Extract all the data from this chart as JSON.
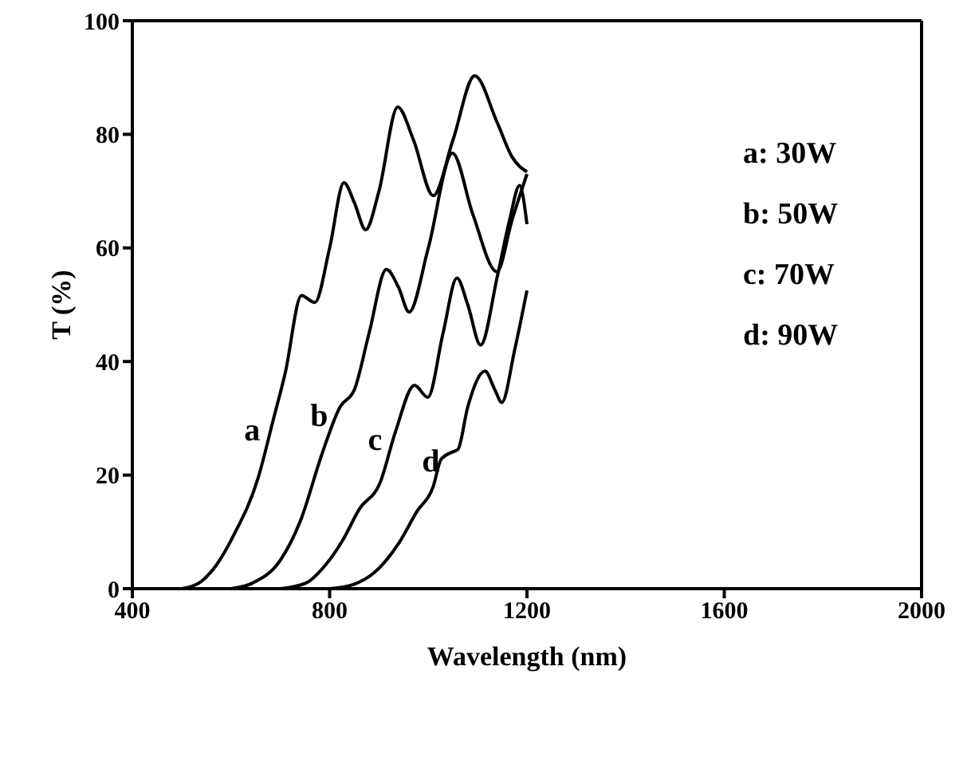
{
  "chart_data": {
    "type": "line",
    "xlabel": "Wavelength (nm)",
    "ylabel": "T (%)",
    "xlim": [
      400,
      2000
    ],
    "xticks": [
      400,
      800,
      1200,
      1600,
      2000
    ],
    "ylim": [
      0,
      100
    ],
    "yticks": [
      0,
      20,
      40,
      60,
      80,
      100
    ],
    "marker": "none",
    "line_style": "solid",
    "series": [
      {
        "name": "a",
        "color": "#000000",
        "x": [
          500,
          535,
          560,
          606,
          655,
          685,
          710,
          743,
          770,
          800,
          829,
          850,
          873,
          900,
          938,
          970,
          1010,
          1050,
          1094,
          1140,
          1170,
          1200
        ],
        "values": [
          0,
          1,
          3,
          9.5,
          19.5,
          29.5,
          38,
          51.6,
          50.4,
          60,
          71.5,
          68,
          63.2,
          70,
          84.8,
          79,
          69.2,
          79,
          90.3,
          82,
          76,
          73.4
        ]
      },
      {
        "name": "b",
        "color": "#000000",
        "x": [
          600,
          644,
          700,
          741,
          784,
          821,
          850,
          880,
          915,
          940,
          961,
          1000,
          1049,
          1090,
          1139,
          1170,
          1200
        ],
        "values": [
          0,
          1,
          5,
          12,
          23.6,
          32,
          35,
          45,
          56.2,
          53,
          48.7,
          60,
          76.7,
          66,
          55.8,
          65,
          73
        ]
      },
      {
        "name": "c",
        "color": "#000000",
        "x": [
          700,
          752,
          790,
          827,
          860,
          902,
          934,
          972,
          999,
          1030,
          1058,
          1080,
          1106,
          1140,
          1165,
          1185,
          1200
        ],
        "values": [
          0,
          1,
          4,
          8.6,
          14,
          18.6,
          27.8,
          35.8,
          33.7,
          45,
          54.7,
          50,
          42.9,
          55,
          65,
          71,
          64.2
        ]
      },
      {
        "name": "d",
        "color": "#000000",
        "x": [
          800,
          850,
          890,
          940,
          977,
          1010,
          1026,
          1047,
          1060,
          1080,
          1115,
          1135,
          1149,
          1175,
          1200
        ],
        "values": [
          0,
          0.8,
          2.8,
          8,
          13.6,
          18,
          22.8,
          24,
          24.5,
          32,
          38.3,
          35,
          32.8,
          42,
          52.5
        ]
      }
    ],
    "annotations": [
      "a: 30W",
      "b: 50W",
      "c: 70W",
      "d: 90W"
    ]
  }
}
